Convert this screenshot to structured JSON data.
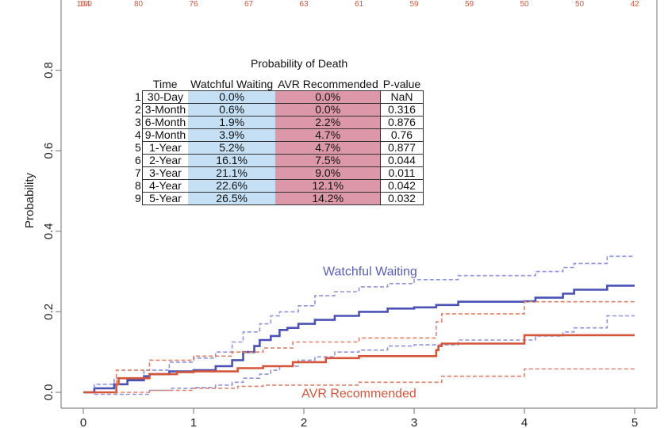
{
  "chart_data": {
    "type": "line",
    "title": "",
    "xlabel": "",
    "ylabel": "Probability",
    "xlim": [
      0,
      5
    ],
    "ylim": [
      0,
      0.9
    ],
    "x_ticks": [
      "0",
      "1",
      "2",
      "3",
      "4",
      "5"
    ],
    "y_ticks": [
      "0.0",
      "0.2",
      "0.4",
      "0.6",
      "0.8"
    ],
    "grid": false,
    "number_at_risk": {
      "times": [
        0,
        0.5,
        1,
        1.5,
        2,
        2.5,
        3,
        3.5,
        4,
        4.5,
        5
      ],
      "values": [
        "104",
        "80",
        "76",
        "67",
        "63",
        "61",
        "59",
        "59",
        "50",
        "50",
        "42"
      ],
      "overlapped_first_label": "109"
    },
    "annotations": [
      {
        "text": "Watchful Waiting",
        "x": 2.6,
        "y": 0.3,
        "color": "#5a5fb8"
      },
      {
        "text": "AVR Recommended",
        "x": 2.5,
        "y": -0.003,
        "color": "#d4553a"
      }
    ],
    "series": [
      {
        "name": "Watchful Waiting",
        "color": "#4a52b5",
        "style": "solid-step",
        "points": [
          [
            0,
            0
          ],
          [
            0.1,
            0
          ],
          [
            0.1,
            0.01
          ],
          [
            0.28,
            0.01
          ],
          [
            0.28,
            0.02
          ],
          [
            0.4,
            0.02
          ],
          [
            0.4,
            0.03
          ],
          [
            0.55,
            0.03
          ],
          [
            0.55,
            0.04
          ],
          [
            0.6,
            0.04
          ],
          [
            0.6,
            0.045
          ],
          [
            0.78,
            0.045
          ],
          [
            0.78,
            0.052
          ],
          [
            1.0,
            0.052
          ],
          [
            1.0,
            0.055
          ],
          [
            1.2,
            0.055
          ],
          [
            1.2,
            0.065
          ],
          [
            1.35,
            0.065
          ],
          [
            1.35,
            0.08
          ],
          [
            1.45,
            0.08
          ],
          [
            1.45,
            0.1
          ],
          [
            1.55,
            0.1
          ],
          [
            1.55,
            0.115
          ],
          [
            1.6,
            0.115
          ],
          [
            1.6,
            0.13
          ],
          [
            1.7,
            0.13
          ],
          [
            1.7,
            0.14
          ],
          [
            1.78,
            0.14
          ],
          [
            1.78,
            0.155
          ],
          [
            1.85,
            0.155
          ],
          [
            1.85,
            0.16
          ],
          [
            1.95,
            0.16
          ],
          [
            1.95,
            0.17
          ],
          [
            2.1,
            0.17
          ],
          [
            2.1,
            0.18
          ],
          [
            2.28,
            0.18
          ],
          [
            2.28,
            0.19
          ],
          [
            2.5,
            0.19
          ],
          [
            2.5,
            0.2
          ],
          [
            2.76,
            0.2
          ],
          [
            2.76,
            0.208
          ],
          [
            3.0,
            0.208
          ],
          [
            3.0,
            0.211
          ],
          [
            3.2,
            0.211
          ],
          [
            3.2,
            0.217
          ],
          [
            3.4,
            0.217
          ],
          [
            3.4,
            0.225
          ],
          [
            4.0,
            0.225
          ],
          [
            4.0,
            0.226
          ],
          [
            4.1,
            0.226
          ],
          [
            4.1,
            0.235
          ],
          [
            4.35,
            0.235
          ],
          [
            4.35,
            0.245
          ],
          [
            4.45,
            0.245
          ],
          [
            4.45,
            0.255
          ],
          [
            4.75,
            0.255
          ],
          [
            4.75,
            0.265
          ],
          [
            5.0,
            0.265
          ]
        ]
      },
      {
        "name": "Watchful Waiting upper CI",
        "color": "#8d93dc",
        "style": "dashed-step",
        "points": [
          [
            0.1,
            0.01
          ],
          [
            0.1,
            0.02
          ],
          [
            0.28,
            0.02
          ],
          [
            0.28,
            0.035
          ],
          [
            0.55,
            0.035
          ],
          [
            0.55,
            0.055
          ],
          [
            0.78,
            0.055
          ],
          [
            0.78,
            0.075
          ],
          [
            1.0,
            0.075
          ],
          [
            1.0,
            0.085
          ],
          [
            1.2,
            0.085
          ],
          [
            1.2,
            0.1
          ],
          [
            1.35,
            0.1
          ],
          [
            1.35,
            0.125
          ],
          [
            1.45,
            0.125
          ],
          [
            1.45,
            0.15
          ],
          [
            1.6,
            0.15
          ],
          [
            1.6,
            0.17
          ],
          [
            1.7,
            0.17
          ],
          [
            1.7,
            0.19
          ],
          [
            1.78,
            0.19
          ],
          [
            1.78,
            0.2
          ],
          [
            1.95,
            0.2
          ],
          [
            1.95,
            0.215
          ],
          [
            2.1,
            0.215
          ],
          [
            2.1,
            0.24
          ],
          [
            2.28,
            0.24
          ],
          [
            2.28,
            0.25
          ],
          [
            2.5,
            0.25
          ],
          [
            2.5,
            0.262
          ],
          [
            2.76,
            0.262
          ],
          [
            2.76,
            0.27
          ],
          [
            3.0,
            0.27
          ],
          [
            3.0,
            0.28
          ],
          [
            3.4,
            0.28
          ],
          [
            3.4,
            0.29
          ],
          [
            4.1,
            0.29
          ],
          [
            4.1,
            0.3
          ],
          [
            4.35,
            0.3
          ],
          [
            4.35,
            0.31
          ],
          [
            4.45,
            0.31
          ],
          [
            4.45,
            0.32
          ],
          [
            4.75,
            0.32
          ],
          [
            4.75,
            0.338
          ],
          [
            5.0,
            0.338
          ]
        ]
      },
      {
        "name": "Watchful Waiting lower CI",
        "color": "#8d93dc",
        "style": "dashed-step",
        "points": [
          [
            0.1,
            -0.005
          ],
          [
            0.6,
            -0.005
          ],
          [
            0.6,
            0.005
          ],
          [
            0.8,
            0.005
          ],
          [
            0.8,
            0.01
          ],
          [
            1.0,
            0.01
          ],
          [
            1.0,
            0.012
          ],
          [
            1.2,
            0.012
          ],
          [
            1.2,
            0.018
          ],
          [
            1.35,
            0.018
          ],
          [
            1.35,
            0.025
          ],
          [
            1.45,
            0.025
          ],
          [
            1.45,
            0.035
          ],
          [
            1.6,
            0.035
          ],
          [
            1.6,
            0.045
          ],
          [
            1.7,
            0.045
          ],
          [
            1.7,
            0.055
          ],
          [
            1.78,
            0.055
          ],
          [
            1.78,
            0.065
          ],
          [
            1.95,
            0.065
          ],
          [
            1.95,
            0.08
          ],
          [
            2.1,
            0.08
          ],
          [
            2.1,
            0.088
          ],
          [
            2.28,
            0.088
          ],
          [
            2.28,
            0.1
          ],
          [
            2.5,
            0.1
          ],
          [
            2.5,
            0.105
          ],
          [
            2.76,
            0.105
          ],
          [
            2.76,
            0.115
          ],
          [
            3.0,
            0.115
          ],
          [
            3.0,
            0.118
          ],
          [
            3.4,
            0.118
          ],
          [
            3.4,
            0.13
          ],
          [
            4.1,
            0.13
          ],
          [
            4.1,
            0.14
          ],
          [
            4.35,
            0.14
          ],
          [
            4.35,
            0.15
          ],
          [
            4.45,
            0.15
          ],
          [
            4.45,
            0.16
          ],
          [
            4.75,
            0.16
          ],
          [
            4.75,
            0.19
          ],
          [
            5.0,
            0.19
          ]
        ]
      },
      {
        "name": "AVR Recommended",
        "color": "#d4553a",
        "style": "solid-step",
        "points": [
          [
            0,
            0
          ],
          [
            0.3,
            0
          ],
          [
            0.3,
            0.02
          ],
          [
            0.32,
            0.02
          ],
          [
            0.32,
            0.035
          ],
          [
            0.6,
            0.035
          ],
          [
            0.6,
            0.045
          ],
          [
            0.85,
            0.045
          ],
          [
            0.85,
            0.05
          ],
          [
            1.0,
            0.05
          ],
          [
            1.0,
            0.052
          ],
          [
            1.4,
            0.052
          ],
          [
            1.4,
            0.06
          ],
          [
            1.63,
            0.06
          ],
          [
            1.63,
            0.065
          ],
          [
            1.9,
            0.065
          ],
          [
            1.9,
            0.075
          ],
          [
            2.2,
            0.075
          ],
          [
            2.2,
            0.085
          ],
          [
            2.5,
            0.085
          ],
          [
            2.5,
            0.09
          ],
          [
            3.2,
            0.09
          ],
          [
            3.2,
            0.105
          ],
          [
            3.22,
            0.105
          ],
          [
            3.22,
            0.115
          ],
          [
            3.25,
            0.115
          ],
          [
            3.25,
            0.121
          ],
          [
            4.0,
            0.121
          ],
          [
            4.0,
            0.142
          ],
          [
            5.0,
            0.142
          ]
        ]
      },
      {
        "name": "AVR Recommended upper CI",
        "color": "#e0806a",
        "style": "dashed-step",
        "points": [
          [
            0.3,
            0.02
          ],
          [
            0.3,
            0.055
          ],
          [
            0.6,
            0.055
          ],
          [
            0.6,
            0.08
          ],
          [
            1.0,
            0.08
          ],
          [
            1.0,
            0.09
          ],
          [
            1.35,
            0.09
          ],
          [
            1.35,
            0.1
          ],
          [
            1.63,
            0.1
          ],
          [
            1.63,
            0.11
          ],
          [
            1.9,
            0.11
          ],
          [
            1.9,
            0.125
          ],
          [
            2.5,
            0.125
          ],
          [
            2.5,
            0.135
          ],
          [
            3.2,
            0.135
          ],
          [
            3.2,
            0.175
          ],
          [
            3.25,
            0.175
          ],
          [
            3.25,
            0.195
          ],
          [
            4.0,
            0.195
          ],
          [
            4.0,
            0.225
          ],
          [
            5.0,
            0.225
          ]
        ]
      },
      {
        "name": "AVR Recommended lower CI",
        "color": "#e0806a",
        "style": "dashed-step",
        "points": [
          [
            0.3,
            -0.005
          ],
          [
            0.3,
            0.0
          ],
          [
            0.6,
            0.0
          ],
          [
            0.6,
            0.005
          ],
          [
            1.0,
            0.005
          ],
          [
            1.0,
            0.01
          ],
          [
            1.4,
            0.01
          ],
          [
            1.4,
            0.015
          ],
          [
            1.63,
            0.015
          ],
          [
            1.63,
            0.018
          ],
          [
            2.5,
            0.018
          ],
          [
            2.5,
            0.025
          ],
          [
            3.25,
            0.025
          ],
          [
            3.25,
            0.04
          ],
          [
            4.0,
            0.04
          ],
          [
            4.0,
            0.058
          ],
          [
            5.0,
            0.058
          ]
        ]
      }
    ]
  },
  "table": {
    "title": "Probability of Death",
    "headers": [
      "Time",
      "Watchful Waiting",
      "AVR Recommended",
      "P-value"
    ],
    "colors": {
      "watchful_waiting": "#c5e0f4",
      "avr_recommended": "#dc98a8"
    },
    "rows": [
      {
        "n": "1",
        "time": "30-Day",
        "ww": "0.0%",
        "avr": "0.0%",
        "p": "NaN"
      },
      {
        "n": "2",
        "time": "3-Month",
        "ww": "0.6%",
        "avr": "0.0%",
        "p": "0.316"
      },
      {
        "n": "3",
        "time": "6-Month",
        "ww": "1.9%",
        "avr": "2.2%",
        "p": "0.876"
      },
      {
        "n": "4",
        "time": "9-Month",
        "ww": "3.9%",
        "avr": "4.7%",
        "p": "0.76"
      },
      {
        "n": "5",
        "time": "1-Year",
        "ww": "5.2%",
        "avr": "4.7%",
        "p": "0.877"
      },
      {
        "n": "6",
        "time": "2-Year",
        "ww": "16.1%",
        "avr": "7.5%",
        "p": "0.044"
      },
      {
        "n": "7",
        "time": "3-Year",
        "ww": "21.1%",
        "avr": "9.0%",
        "p": "0.011"
      },
      {
        "n": "8",
        "time": "4-Year",
        "ww": "22.6%",
        "avr": "12.1%",
        "p": "0.042"
      },
      {
        "n": "9",
        "time": "5-Year",
        "ww": "26.5%",
        "avr": "14.2%",
        "p": "0.032"
      }
    ]
  }
}
